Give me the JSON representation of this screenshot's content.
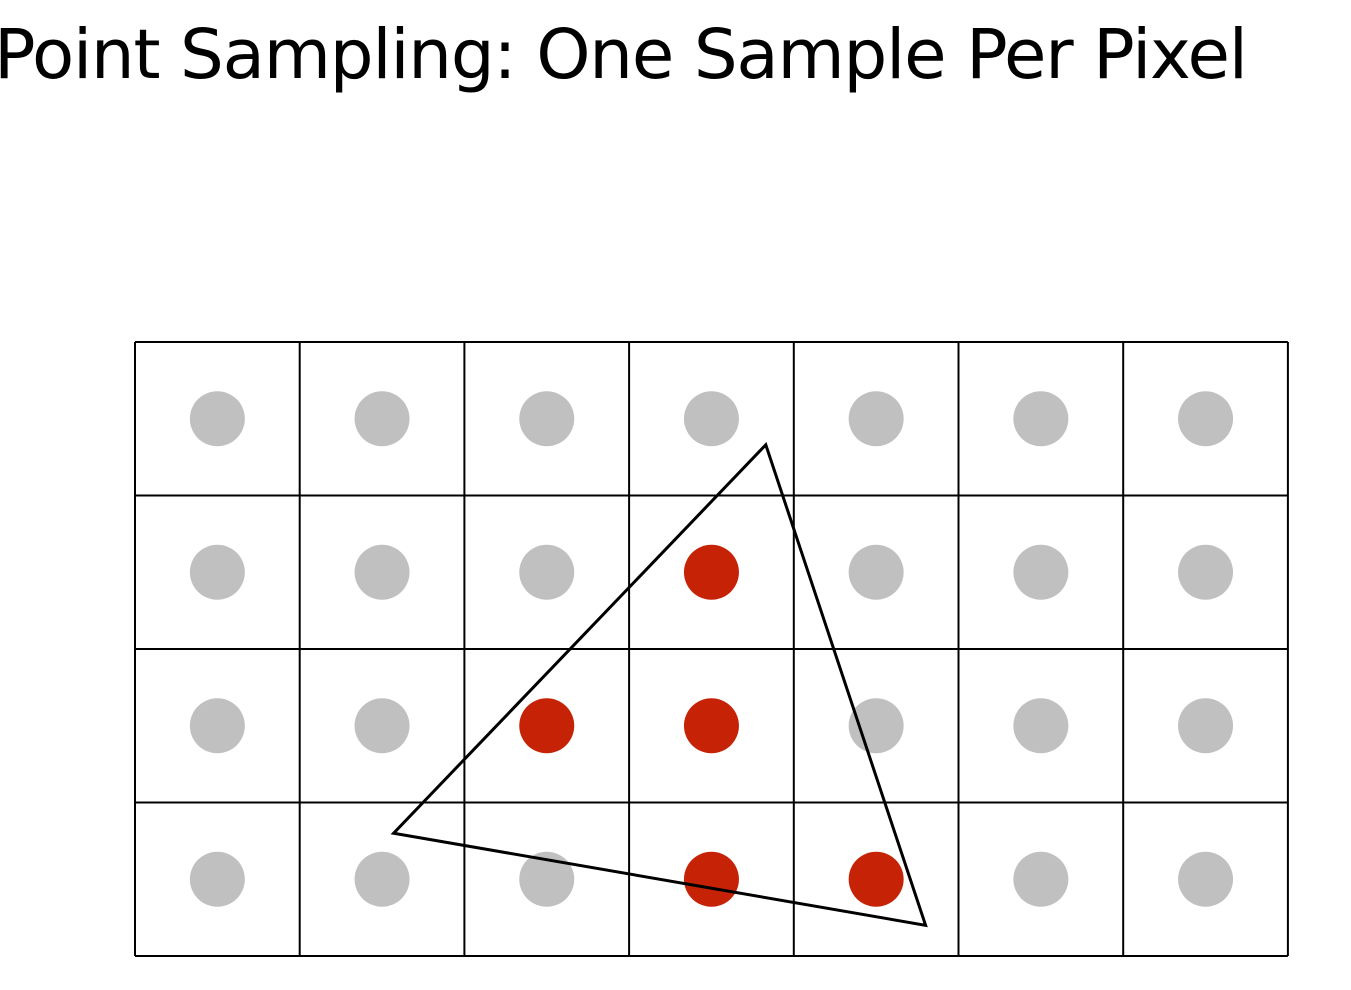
{
  "slide": {
    "title": "Point Sampling: One Sample Per Pixel"
  },
  "grid": {
    "columns": 7,
    "rows": 4
  },
  "samples": {
    "covered_cells": [
      [
        1,
        3
      ],
      [
        2,
        2
      ],
      [
        2,
        3
      ],
      [
        3,
        3
      ],
      [
        3,
        4
      ]
    ],
    "color_inside": "#c62206",
    "color_outside": "#c0c0c0"
  },
  "triangle": {
    "vertices_in_cells": [
      [
        3.83,
        0.67
      ],
      [
        1.57,
        3.2
      ],
      [
        4.8,
        3.8
      ]
    ],
    "stroke": "#000000"
  },
  "colors": {
    "grid_line": "#000000",
    "background": "#ffffff"
  }
}
